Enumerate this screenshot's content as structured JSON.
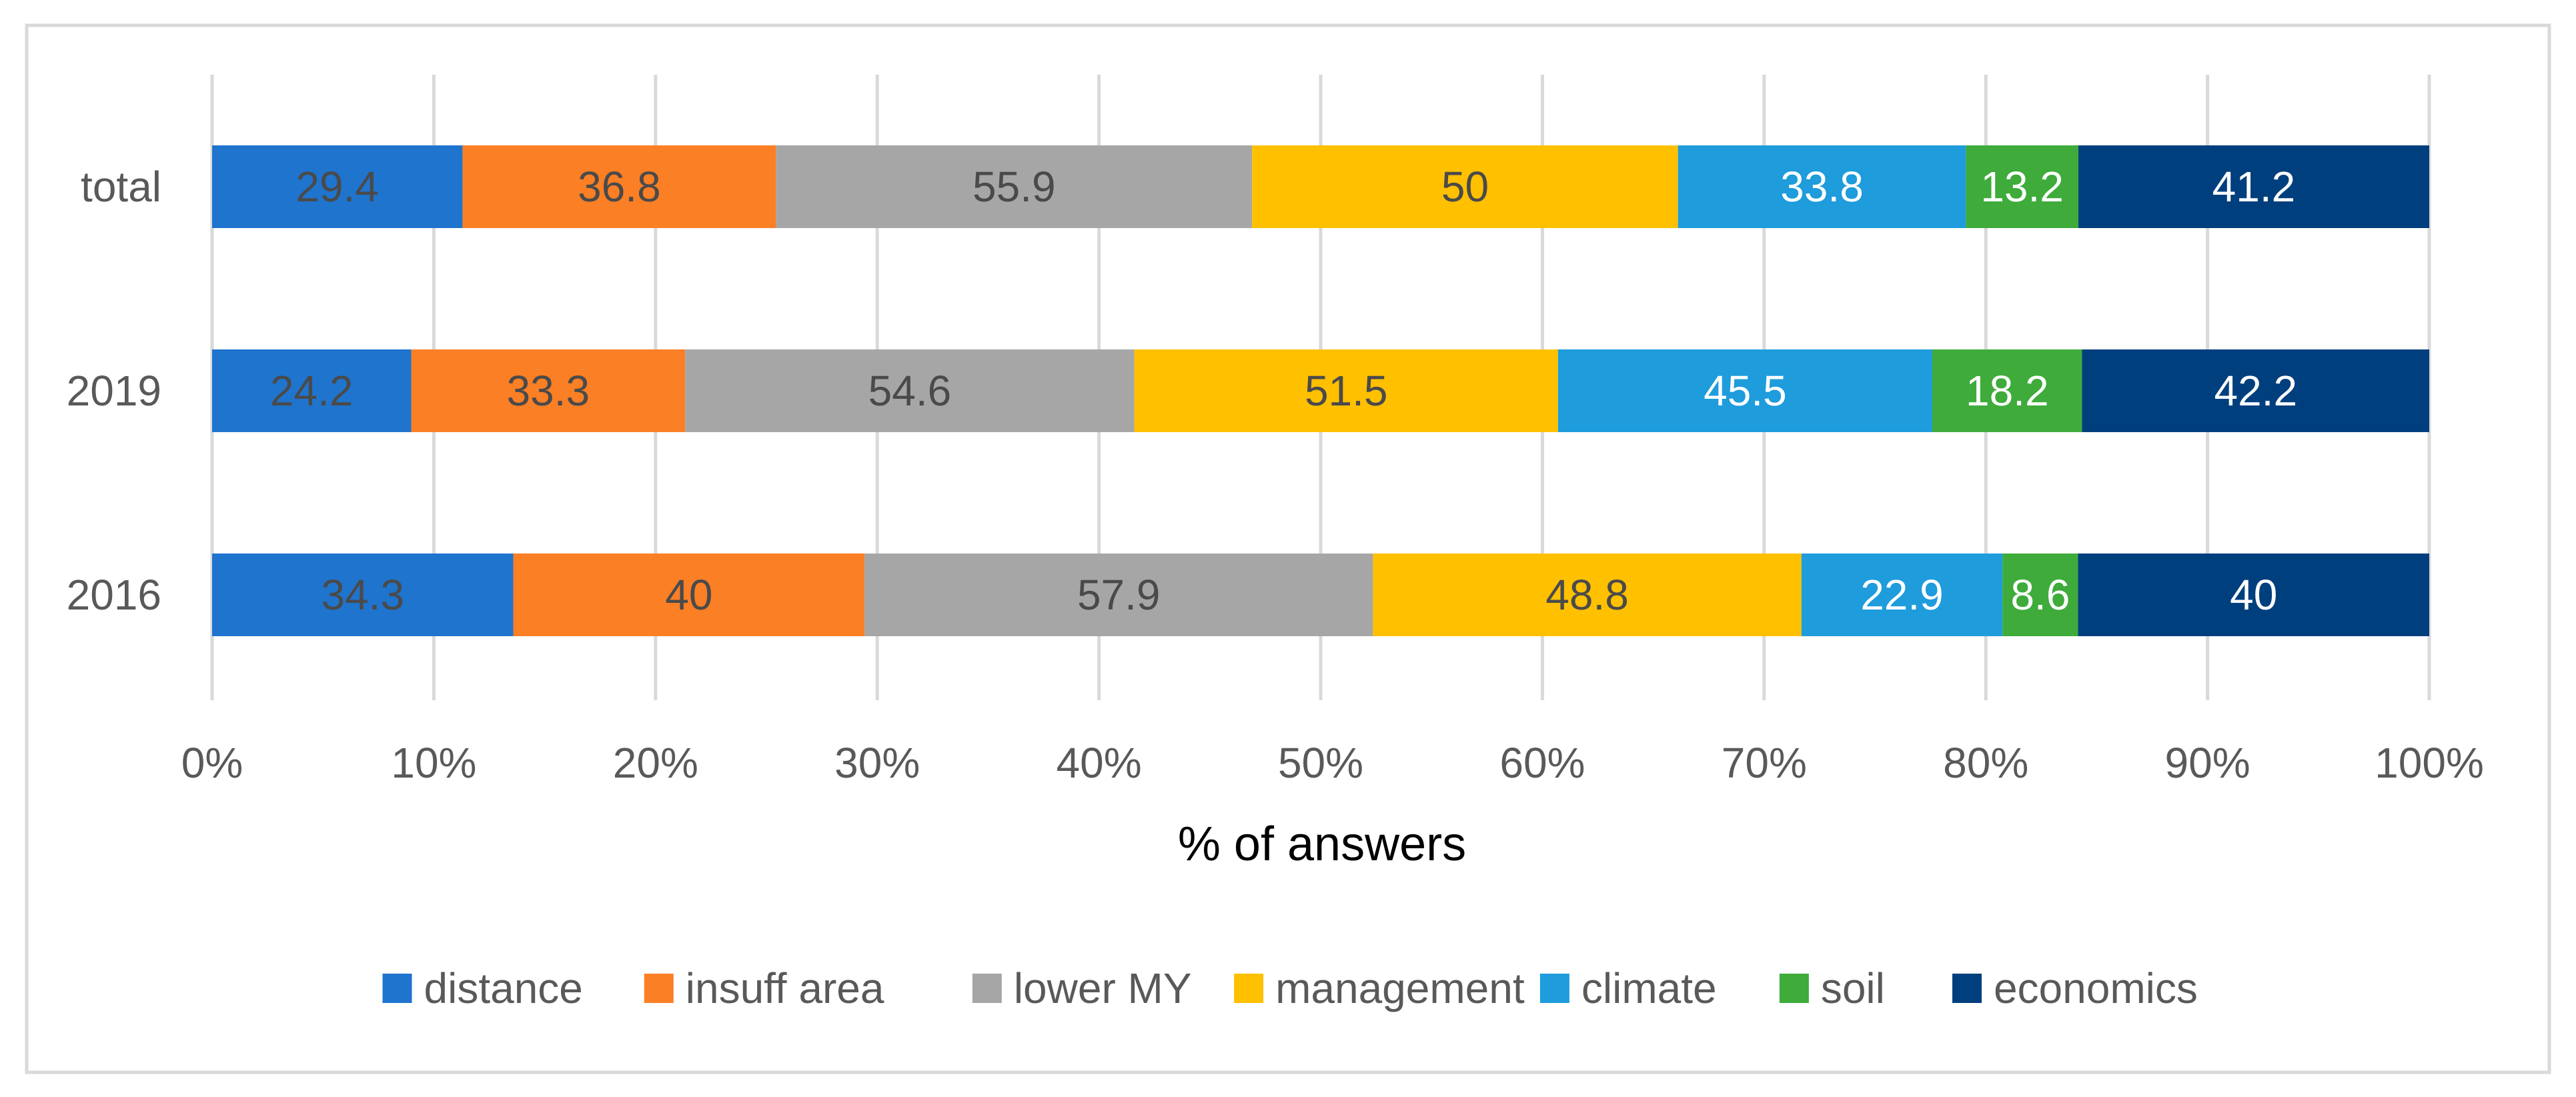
{
  "chart_data": {
    "type": "bar",
    "orientation": "horizontal",
    "stacked": "percent",
    "title": "",
    "xlabel": "% of answers",
    "ylabel": "",
    "xlim": [
      0,
      100
    ],
    "x_ticks": [
      "0%",
      "10%",
      "20%",
      "30%",
      "40%",
      "50%",
      "60%",
      "70%",
      "80%",
      "90%",
      "100%"
    ],
    "grid": true,
    "legend_position": "bottom",
    "categories": [
      "total",
      "2019",
      "2016"
    ],
    "series": [
      {
        "name": "distance",
        "color": "#1F74CE",
        "label_color": "#4A4A4A",
        "values": [
          29.4,
          24.2,
          34.3
        ]
      },
      {
        "name": "insuff area",
        "color": "#FB7F25",
        "label_color": "#4A4A4A",
        "values": [
          36.8,
          33.3,
          40
        ]
      },
      {
        "name": "lower MY",
        "color": "#A6A6A6",
        "label_color": "#4A4A4A",
        "values": [
          55.9,
          54.6,
          57.9
        ]
      },
      {
        "name": "management",
        "color": "#FFC000",
        "label_color": "#4A4A4A",
        "values": [
          50,
          51.5,
          48.8
        ]
      },
      {
        "name": "climate",
        "color": "#1E9CDC",
        "label_color": "#FFFFFF",
        "values": [
          33.8,
          45.5,
          22.9
        ]
      },
      {
        "name": "soil",
        "color": "#3EAB3B",
        "label_color": "#FFFFFF",
        "values": [
          13.2,
          18.2,
          8.6
        ]
      },
      {
        "name": "economics",
        "color": "#003F7D",
        "label_color": "#FFFFFF",
        "values": [
          41.2,
          42.2,
          40
        ]
      }
    ]
  }
}
